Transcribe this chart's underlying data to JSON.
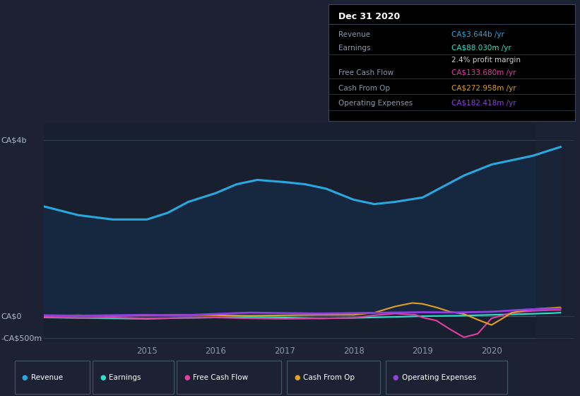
{
  "bg_color": "#1c2234",
  "plot_bg_color": "#182030",
  "title_box": {
    "title": "Dec 31 2020",
    "rows": [
      {
        "label": "Revenue",
        "value": "CA$3.644b /yr",
        "value_color": "#29a8e0"
      },
      {
        "label": "Earnings",
        "value": "CA$88.030m /yr",
        "value_color": "#2de0c8"
      },
      {
        "label": "",
        "value": "2.4% profit margin",
        "value_color": "#cccccc"
      },
      {
        "label": "Free Cash Flow",
        "value": "CA$133.680m /yr",
        "value_color": "#e040a0"
      },
      {
        "label": "Cash From Op",
        "value": "CA$272.958m /yr",
        "value_color": "#e0a020"
      },
      {
        "label": "Operating Expenses",
        "value": "CA$182.418m /yr",
        "value_color": "#9040e0"
      }
    ]
  },
  "y_label_top": "CA$4b",
  "y_label_zero": "CA$0",
  "y_label_bottom": "-CA$500m",
  "x_ticks": [
    "2015",
    "2016",
    "2017",
    "2018",
    "2019",
    "2020"
  ],
  "x_tick_vals": [
    2015,
    2016,
    2017,
    2018,
    2019,
    2020
  ],
  "legend": [
    {
      "label": "Revenue",
      "color": "#29a8e0"
    },
    {
      "label": "Earnings",
      "color": "#2de0c8"
    },
    {
      "label": "Free Cash Flow",
      "color": "#e040a0"
    },
    {
      "label": "Cash From Op",
      "color": "#e0a020"
    },
    {
      "label": "Operating Expenses",
      "color": "#9040e0"
    }
  ],
  "ylim": [
    -600,
    4400
  ],
  "xlim": [
    2013.5,
    2021.2
  ],
  "revenue_color": "#29a8e0",
  "revenue_fill_color": "#162840",
  "earnings_color": "#2de0c8",
  "fcf_color": "#e040a0",
  "cashop_color": "#e0a020",
  "opex_color": "#9040e0",
  "revenue_x": [
    2013.5,
    2014.0,
    2014.5,
    2015.0,
    2015.3,
    2015.6,
    2016.0,
    2016.3,
    2016.6,
    2017.0,
    2017.3,
    2017.6,
    2018.0,
    2018.3,
    2018.6,
    2019.0,
    2019.3,
    2019.6,
    2020.0,
    2020.3,
    2020.6,
    2020.9,
    2021.0
  ],
  "revenue_y": [
    2500,
    2300,
    2200,
    2200,
    2350,
    2600,
    2800,
    3000,
    3100,
    3050,
    3000,
    2900,
    2650,
    2550,
    2600,
    2700,
    2950,
    3200,
    3450,
    3550,
    3650,
    3800,
    3850
  ],
  "earnings_x": [
    2013.5,
    2014.0,
    2014.5,
    2015.0,
    2015.5,
    2016.0,
    2016.5,
    2017.0,
    2017.5,
    2018.0,
    2018.5,
    2019.0,
    2019.5,
    2020.0,
    2020.5,
    2020.9,
    2021.0
  ],
  "earnings_y": [
    -30,
    -40,
    -50,
    -60,
    -40,
    -30,
    -20,
    -30,
    -50,
    -40,
    -20,
    0,
    10,
    30,
    50,
    70,
    80
  ],
  "fcf_x": [
    2013.5,
    2014.0,
    2014.5,
    2015.0,
    2015.5,
    2016.0,
    2016.5,
    2017.0,
    2017.5,
    2018.0,
    2018.3,
    2018.6,
    2018.9,
    2019.0,
    2019.2,
    2019.4,
    2019.6,
    2019.8,
    2020.0,
    2020.3,
    2020.6,
    2020.9,
    2021.0
  ],
  "fcf_y": [
    -20,
    -40,
    -30,
    -50,
    -40,
    -30,
    -50,
    -60,
    -50,
    -40,
    20,
    60,
    30,
    -30,
    -100,
    -300,
    -480,
    -400,
    -50,
    80,
    120,
    140,
    140
  ],
  "cashop_x": [
    2013.5,
    2014.0,
    2014.5,
    2015.0,
    2015.5,
    2016.0,
    2016.5,
    2017.0,
    2017.5,
    2018.0,
    2018.3,
    2018.6,
    2018.85,
    2019.0,
    2019.2,
    2019.4,
    2019.6,
    2019.8,
    2020.0,
    2020.3,
    2020.6,
    2020.9,
    2021.0
  ],
  "cashop_y": [
    10,
    20,
    10,
    20,
    30,
    20,
    10,
    20,
    30,
    30,
    80,
    220,
    300,
    280,
    200,
    100,
    50,
    -80,
    -200,
    80,
    160,
    190,
    200
  ],
  "opex_x": [
    2013.5,
    2014.0,
    2014.5,
    2015.0,
    2015.3,
    2015.6,
    2016.0,
    2016.3,
    2016.5,
    2017.0,
    2017.5,
    2018.0,
    2018.5,
    2019.0,
    2019.5,
    2020.0,
    2020.5,
    2020.9,
    2021.0
  ],
  "opex_y": [
    20,
    10,
    20,
    30,
    20,
    25,
    50,
    70,
    80,
    70,
    60,
    70,
    80,
    90,
    85,
    100,
    150,
    170,
    175
  ],
  "gray_line_x": [
    2013.5,
    2021.2
  ],
  "gray_line_y": [
    0,
    0
  ],
  "shade_start": 2020.65,
  "shade_end": 2021.2
}
